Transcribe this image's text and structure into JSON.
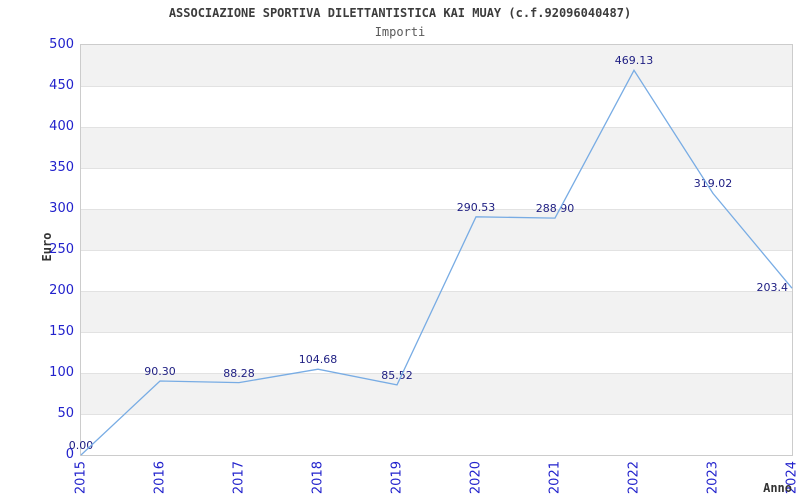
{
  "header": {
    "title": "ASSOCIAZIONE SPORTIVA DILETTANTISTICA KAI MUAY (c.f.92096040487)",
    "subtitle": "Importi"
  },
  "chart_data": {
    "type": "line",
    "title": "ASSOCIAZIONE SPORTIVA DILETTANTISTICA KAI MUAY (c.f.92096040487)",
    "subtitle": "Importi",
    "xlabel": "Anno",
    "ylabel": "Euro",
    "categories": [
      "2015",
      "2016",
      "2017",
      "2018",
      "2019",
      "2020",
      "2021",
      "2022",
      "2023",
      "2024"
    ],
    "values": [
      0.0,
      90.3,
      88.28,
      104.68,
      85.52,
      290.53,
      288.9,
      469.13,
      319.02,
      203.4
    ],
    "point_labels": [
      "0.00",
      "90.30",
      "88.28",
      "104.68",
      "85.52",
      "290.53",
      "288.90",
      "469.13",
      "319.02",
      "203.4"
    ],
    "ylim": [
      0,
      500
    ],
    "ytick_step": 50,
    "yticks": [
      0,
      50,
      100,
      150,
      200,
      250,
      300,
      350,
      400,
      450,
      500
    ],
    "grid": "horizontal-bands-alternating",
    "legend": "none",
    "x_tick_rotation": 90,
    "series_name": "Importi"
  },
  "colors": {
    "line": "#78ace4",
    "tick_label": "#2222cc",
    "data_label": "#1e1e82",
    "band_gray": "#f2f2f2",
    "band_white": "#ffffff",
    "gridline": "#e2e2e2",
    "plot_border": "#cccccc",
    "title": "#3c3c3c",
    "subtitle": "#5a5a5a",
    "axis_title": "#333333"
  }
}
